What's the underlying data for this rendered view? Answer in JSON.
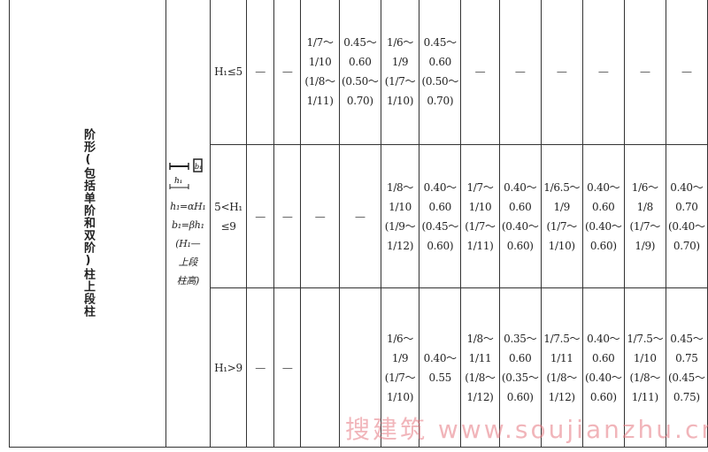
{
  "category": "阶形(包括单阶和双阶)柱上段柱",
  "diagram": {
    "label_h": "h₁",
    "label_b": "b₁",
    "lines": [
      "h₁=αH₁",
      "b₁=βh₁",
      "(H₁—",
      "上段",
      "柱高)"
    ]
  },
  "rows": [
    {
      "condition": [
        "H₁≤5"
      ],
      "cells": [
        [
          "—"
        ],
        [
          "—"
        ],
        [
          "1/7～",
          "1/10",
          "(1/8～",
          "1/11)"
        ],
        [
          "0.45～",
          "0.60",
          "(0.50～",
          "0.70)"
        ],
        [
          "1/6～",
          "1/9",
          "(1/7～",
          "1/10)"
        ],
        [
          "0.45～",
          "0.60",
          "(0.50～",
          "0.70)"
        ],
        [
          "—"
        ],
        [
          "—"
        ],
        [
          "—"
        ],
        [
          "—"
        ],
        [
          "—"
        ],
        [
          "—"
        ]
      ]
    },
    {
      "condition": [
        "5<H₁",
        "≤9"
      ],
      "cells": [
        [
          "—"
        ],
        [
          "—"
        ],
        [
          "—"
        ],
        [
          "—"
        ],
        [
          "1/8～",
          "1/10",
          "(1/9～",
          "1/12)"
        ],
        [
          "0.40～",
          "0.60",
          "(0.45～",
          "0.60)"
        ],
        [
          "1/7～",
          "1/10",
          "(1/7～",
          "1/11)"
        ],
        [
          "0.40～",
          "0.60",
          "(0.40～",
          "0.60)"
        ],
        [
          "1/6.5～",
          "1/9",
          "(1/7～",
          "1/10)"
        ],
        [
          "0.40～",
          "0.60",
          "(0.40～",
          "0.60)"
        ],
        [
          "1/6～",
          "1/8",
          "(1/7～",
          "1/9)"
        ],
        [
          "0.40～",
          "0.70",
          "(0.40～",
          "0.70)"
        ]
      ]
    },
    {
      "condition": [
        "H₁>9"
      ],
      "cells": [
        [
          "—"
        ],
        [
          "—"
        ],
        [
          ""
        ],
        [
          ""
        ],
        [
          "1/6～",
          "1/9",
          "(1/7～",
          "1/10)"
        ],
        [
          "0.40～",
          "0.55"
        ],
        [
          "1/8～",
          "1/11",
          "(1/8～",
          "1/12)"
        ],
        [
          "0.35～",
          "0.60",
          "(0.35～",
          "0.60)"
        ],
        [
          "1/7.5～",
          "1/11",
          "(1/8～",
          "1/12)"
        ],
        [
          "0.40～",
          "0.60",
          "(0.40～",
          "0.60)"
        ],
        [
          "1/7.5～",
          "1/10",
          "(1/8～",
          "1/11)"
        ],
        [
          "0.45～",
          "0.75",
          "(0.45～",
          "0.75)"
        ]
      ]
    }
  ],
  "watermark": "搜建筑 www.soujianzhu.cn"
}
